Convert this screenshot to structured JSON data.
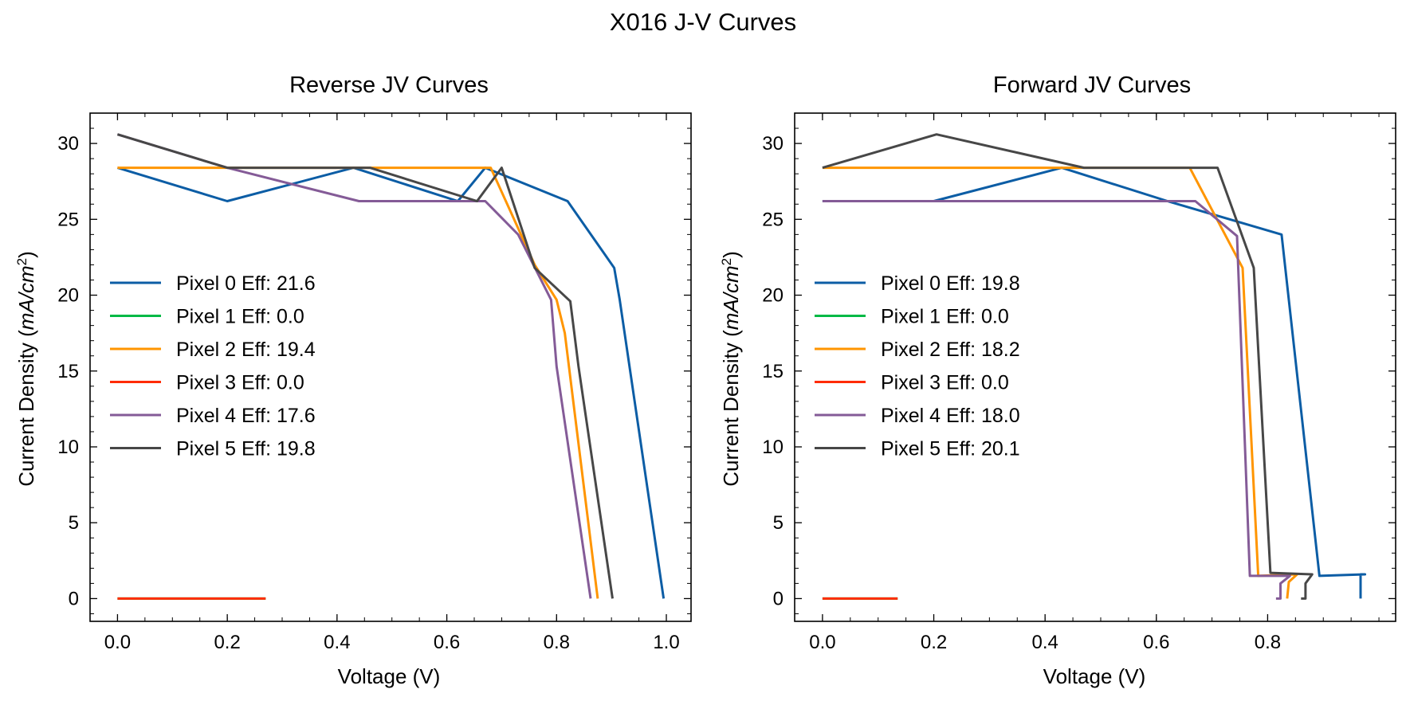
{
  "figure": {
    "title": "X016 J-V Curves"
  },
  "colors": {
    "Pixel 0": "#0C5DA5",
    "Pixel 1": "#00B945",
    "Pixel 2": "#FF9500",
    "Pixel 3": "#FF2C00",
    "Pixel 4": "#845B97",
    "Pixel 5": "#474747"
  },
  "chart_data": [
    {
      "type": "line",
      "title": "Reverse JV Curves",
      "xlabel": "Voltage (V)",
      "ylabel_text": "Current Density (",
      "ylabel_unit": "mA/cm",
      "ylabel_sup": "2",
      "ylabel_close": ")",
      "xlim": [
        -0.05,
        1.045
      ],
      "ylim": [
        -1.5,
        32.0
      ],
      "xticks": [
        0.0,
        0.2,
        0.4,
        0.6,
        0.8,
        1.0
      ],
      "xtick_labels": [
        "0.0",
        "0.2",
        "0.4",
        "0.6",
        "0.8",
        "1.0"
      ],
      "yticks": [
        0,
        5,
        10,
        15,
        20,
        25,
        30
      ],
      "ytick_labels": [
        "0",
        "5",
        "10",
        "15",
        "20",
        "25",
        "30"
      ],
      "legend_position": "center-left",
      "legend": [
        "Pixel 0 Eff: 21.6",
        "Pixel 1 Eff: 0.0",
        "Pixel 2 Eff: 19.4",
        "Pixel 3 Eff: 0.0",
        "Pixel 4 Eff: 17.6",
        "Pixel 5 Eff: 19.8"
      ],
      "series": [
        {
          "key": "Pixel 0",
          "points": [
            [
              0.0,
              28.4
            ],
            [
              0.2,
              26.2
            ],
            [
              0.43,
              28.4
            ],
            [
              0.62,
              26.2
            ],
            [
              0.67,
              28.4
            ],
            [
              0.82,
              26.2
            ],
            [
              0.905,
              21.8
            ],
            [
              0.915,
              19.7
            ],
            [
              0.995,
              0.0
            ]
          ]
        },
        {
          "key": "Pixel 1",
          "points": [
            [
              0.0,
              0.0
            ],
            [
              0.27,
              0.0
            ]
          ]
        },
        {
          "key": "Pixel 2",
          "points": [
            [
              0.0,
              28.4
            ],
            [
              0.68,
              28.4
            ],
            [
              0.76,
              22.0
            ],
            [
              0.8,
              19.7
            ],
            [
              0.815,
              17.5
            ],
            [
              0.875,
              0.0
            ]
          ]
        },
        {
          "key": "Pixel 3",
          "points": [
            [
              0.0,
              0.0
            ],
            [
              0.27,
              0.0
            ]
          ]
        },
        {
          "key": "Pixel 4",
          "points": [
            [
              0.0,
              30.6
            ],
            [
              0.2,
              28.4
            ],
            [
              0.44,
              26.2
            ],
            [
              0.67,
              26.2
            ],
            [
              0.73,
              24.0
            ],
            [
              0.79,
              19.7
            ],
            [
              0.8,
              15.3
            ],
            [
              0.862,
              0.0
            ]
          ]
        },
        {
          "key": "Pixel 5",
          "points": [
            [
              0.0,
              30.6
            ],
            [
              0.2,
              28.4
            ],
            [
              0.46,
              28.4
            ],
            [
              0.655,
              26.2
            ],
            [
              0.7,
              28.4
            ],
            [
              0.76,
              21.8
            ],
            [
              0.825,
              19.6
            ],
            [
              0.84,
              15.3
            ],
            [
              0.902,
              0.0
            ]
          ]
        }
      ]
    },
    {
      "type": "line",
      "title": "Forward JV Curves",
      "xlabel": "Voltage (V)",
      "ylabel_text": "Current Density (",
      "ylabel_unit": "mA/cm",
      "ylabel_sup": "2",
      "ylabel_close": ")",
      "xlim": [
        -0.05,
        1.03
      ],
      "ylim": [
        -1.5,
        32.0
      ],
      "xticks": [
        0.0,
        0.2,
        0.4,
        0.6,
        0.8
      ],
      "xtick_labels": [
        "0.0",
        "0.2",
        "0.4",
        "0.6",
        "0.8"
      ],
      "yticks": [
        0,
        5,
        10,
        15,
        20,
        25,
        30
      ],
      "ytick_labels": [
        "0",
        "5",
        "10",
        "15",
        "20",
        "25",
        "30"
      ],
      "legend_position": "center-left",
      "legend": [
        "Pixel 0 Eff: 19.8",
        "Pixel 1 Eff: 0.0",
        "Pixel 2 Eff: 18.2",
        "Pixel 3 Eff: 0.0",
        "Pixel 4 Eff: 18.0",
        "Pixel 5 Eff: 20.1"
      ],
      "series": [
        {
          "key": "Pixel 0",
          "points": [
            [
              0.0,
              26.2
            ],
            [
              0.2,
              26.2
            ],
            [
              0.43,
              28.4
            ],
            [
              0.62,
              26.2
            ],
            [
              0.825,
              24.0
            ],
            [
              0.893,
              1.5
            ],
            [
              0.975,
              1.6
            ],
            [
              0.967,
              1.6
            ],
            [
              0.967,
              0.0
            ]
          ]
        },
        {
          "key": "Pixel 1",
          "points": [
            [
              0.0,
              0.0
            ],
            [
              0.135,
              0.0
            ]
          ]
        },
        {
          "key": "Pixel 2",
          "points": [
            [
              0.0,
              28.4
            ],
            [
              0.66,
              28.4
            ],
            [
              0.755,
              21.8
            ],
            [
              0.783,
              1.5
            ],
            [
              0.853,
              1.6
            ],
            [
              0.838,
              1.1
            ],
            [
              0.835,
              0.0
            ]
          ]
        },
        {
          "key": "Pixel 3",
          "points": [
            [
              0.0,
              0.0
            ],
            [
              0.135,
              0.0
            ]
          ]
        },
        {
          "key": "Pixel 4",
          "points": [
            [
              0.0,
              26.2
            ],
            [
              0.67,
              26.2
            ],
            [
              0.745,
              23.9
            ],
            [
              0.768,
              1.5
            ],
            [
              0.84,
              1.5
            ],
            [
              0.823,
              1.0
            ],
            [
              0.823,
              0.0
            ],
            [
              0.815,
              0.0
            ]
          ]
        },
        {
          "key": "Pixel 5",
          "points": [
            [
              0.0,
              28.4
            ],
            [
              0.205,
              30.6
            ],
            [
              0.47,
              28.4
            ],
            [
              0.71,
              28.4
            ],
            [
              0.775,
              21.8
            ],
            [
              0.805,
              1.7
            ],
            [
              0.88,
              1.6
            ],
            [
              0.868,
              1.0
            ],
            [
              0.868,
              0.0
            ],
            [
              0.86,
              0.0
            ]
          ]
        }
      ]
    }
  ]
}
